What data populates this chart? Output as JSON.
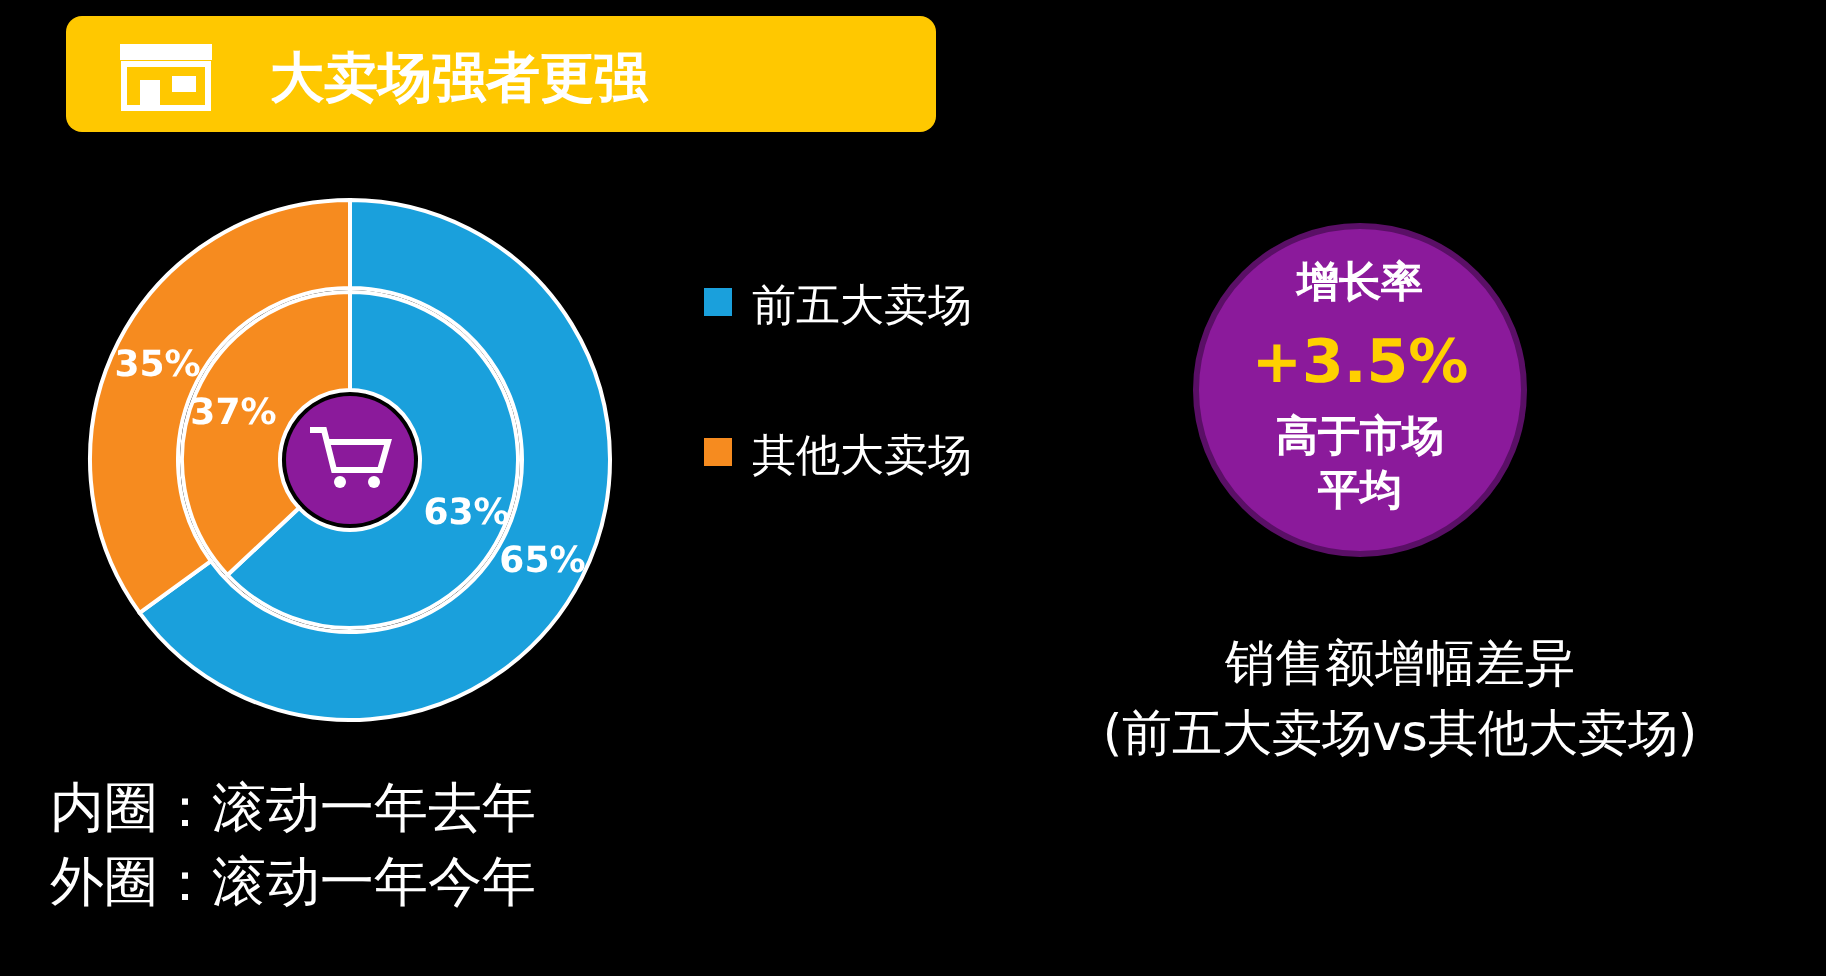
{
  "chart_data": [
    {
      "type": "donut",
      "title": "大卖场强者更强",
      "categories": [
        "前五大卖场",
        "其他大卖场"
      ],
      "colors": [
        "#1aa0dc",
        "#f68b1f"
      ],
      "series": [
        {
          "values": [
            63,
            37
          ],
          "value_labels": [
            "63%",
            "37%"
          ]
        },
        {
          "values": [
            65,
            35
          ],
          "value_labels": [
            "65%",
            "35%"
          ]
        }
      ],
      "legend": "right",
      "annotations": [
        "内圈：滚动一年去年",
        "外圈：滚动一年今年"
      ]
    },
    {
      "type": "other",
      "title": "增长率",
      "subtitle": "+3.5%",
      "annotations": [
        "高于市场平均",
        "销售额增幅差异",
        "(前五大卖场vs其他大卖场)"
      ]
    }
  ]
}
